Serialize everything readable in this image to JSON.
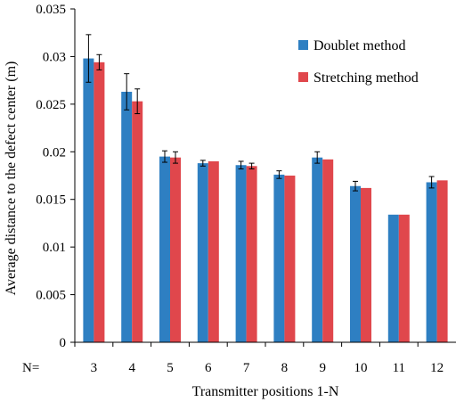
{
  "chart_data": {
    "type": "bar",
    "title": "",
    "xlabel": "Transmitter positions 1-N",
    "ylabel": "Average distance to the defect center (m)",
    "x_prefix": "N=",
    "categories": [
      "3",
      "4",
      "5",
      "6",
      "7",
      "8",
      "9",
      "10",
      "11",
      "12"
    ],
    "ylim": [
      0,
      0.035
    ],
    "yticks": [
      "0",
      "0.005",
      "0.01",
      "0.015",
      "0.02",
      "0.025",
      "0.03",
      "0.035"
    ],
    "grid": false,
    "legend_position": "top-right",
    "series": [
      {
        "name": "Doublet method",
        "color": "#2e7fc2",
        "values": [
          0.0298,
          0.0263,
          0.0195,
          0.0188,
          0.0186,
          0.0176,
          0.0194,
          0.0164,
          0.0134,
          0.0168
        ],
        "errors": [
          0.0025,
          0.0019,
          0.0006,
          0.0003,
          0.0004,
          0.0004,
          0.0006,
          0.0005,
          0,
          0.0006
        ]
      },
      {
        "name": "Stretching method",
        "color": "#e0474c",
        "values": [
          0.0294,
          0.0253,
          0.0194,
          0.019,
          0.0185,
          0.0175,
          0.0192,
          0.0162,
          0.0134,
          0.017
        ],
        "errors": [
          0.0008,
          0.0013,
          0.0006,
          0,
          0.0003,
          0,
          0,
          0,
          0,
          0
        ]
      }
    ]
  }
}
